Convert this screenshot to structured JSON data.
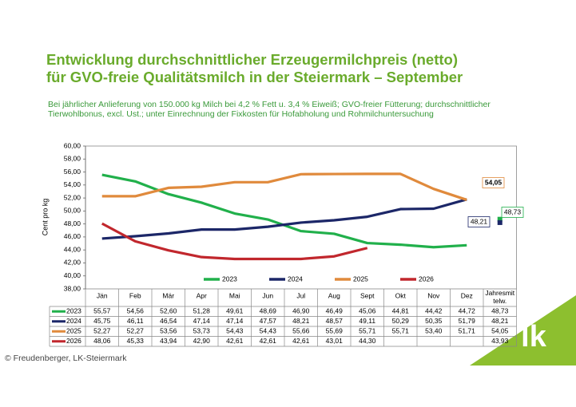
{
  "chart_data": {
    "type": "line",
    "title_lines": [
      "Entwicklung durchschnittlicher Erzeugermilchpreis (netto)",
      "für GVO-freie Qualitätsmilch in der Steiermark – September"
    ],
    "subtitle_lines": [
      "Bei jährlicher Anlieferung von 150.000 kg Milch bei 4,2 % Fett u. 3,4 % Eiweiß; GVO-freier Fütterung; durchschnittlicher",
      "Tierwohlbonus, excl. Ust.; unter Einrechnung der Fixkosten für Hofabholung und Rohmilchuntersuchung"
    ],
    "y_label": "Cent pro kg",
    "categories": [
      "Jän",
      "Feb",
      "Mär",
      "Apr",
      "Mai",
      "Jun",
      "Jul",
      "Aug",
      "Sept",
      "Okt",
      "Nov",
      "Dez"
    ],
    "average_column_label": "Jahresmit telw.",
    "ylim": [
      38,
      60
    ],
    "yticks": [
      {
        "value": 38,
        "label": "38,00"
      },
      {
        "value": 40,
        "label": "40,00"
      },
      {
        "value": 42,
        "label": "42,00"
      },
      {
        "value": 44,
        "label": "44,00"
      },
      {
        "value": 46,
        "label": "46,00"
      },
      {
        "value": 48,
        "label": "48,00"
      },
      {
        "value": 50,
        "label": "50,00"
      },
      {
        "value": 52,
        "label": "52,00"
      },
      {
        "value": 54,
        "label": "54,00"
      },
      {
        "value": 56,
        "label": "56,00"
      },
      {
        "value": 58,
        "label": "58,00"
      },
      {
        "value": 60,
        "label": "60,00"
      }
    ],
    "grid": false,
    "series": [
      {
        "name": "2023",
        "color": "#21b04b",
        "values": [
          55.57,
          54.56,
          52.6,
          51.28,
          49.61,
          48.69,
          46.9,
          46.49,
          45.06,
          44.81,
          44.42,
          44.72
        ],
        "value_labels": [
          "55,57",
          "54,56",
          "52,60",
          "51,28",
          "49,61",
          "48,69",
          "46,90",
          "46,49",
          "45,06",
          "44,81",
          "44,42",
          "44,72"
        ],
        "average": 48.73,
        "average_label": "48,73",
        "average_on_chart": true
      },
      {
        "name": "2024",
        "color": "#1c2768",
        "values": [
          45.75,
          46.11,
          46.54,
          47.14,
          47.14,
          47.57,
          48.21,
          48.57,
          49.11,
          50.29,
          50.35,
          51.79
        ],
        "value_labels": [
          "45,75",
          "46,11",
          "46,54",
          "47,14",
          "47,14",
          "47,57",
          "48,21",
          "48,57",
          "49,11",
          "50,29",
          "50,35",
          "51,79"
        ],
        "average": 48.21,
        "average_label": "48,21",
        "average_on_chart": true
      },
      {
        "name": "2025",
        "color": "#e08a3c",
        "values": [
          52.27,
          52.27,
          53.56,
          53.73,
          54.43,
          54.43,
          55.66,
          55.69,
          55.71,
          55.71,
          53.4,
          51.71
        ],
        "value_labels": [
          "52,27",
          "52,27",
          "53,56",
          "53,73",
          "54,43",
          "54,43",
          "55,66",
          "55,69",
          "55,71",
          "55,71",
          "53,40",
          "51,71"
        ],
        "average": 54.05,
        "average_label": "54,05",
        "average_on_chart": true
      },
      {
        "name": "2026",
        "color": "#c1272d",
        "values": [
          48.06,
          45.33,
          43.94,
          42.9,
          42.61,
          42.61,
          42.61,
          43.01,
          44.3,
          null,
          null,
          null
        ],
        "value_labels": [
          "48,06",
          "45,33",
          "43,94",
          "42,90",
          "42,61",
          "42,61",
          "42,61",
          "43,01",
          "44,30",
          null,
          null,
          null
        ],
        "average": 43.93,
        "average_label": "43,93",
        "average_on_chart": false
      }
    ]
  },
  "footer": "© Freudenberger, LK-Steiermark",
  "logo": "lk"
}
